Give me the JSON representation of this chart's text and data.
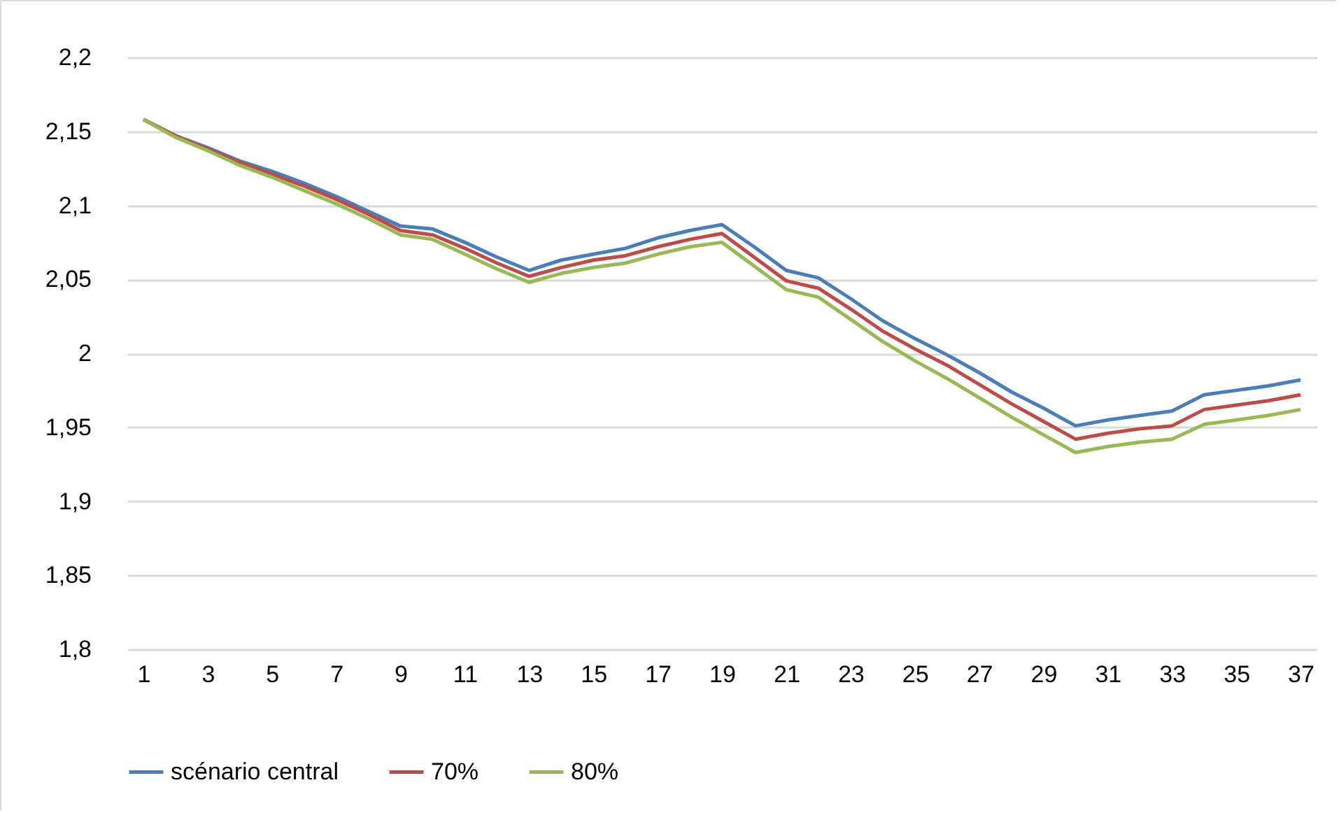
{
  "chart_data": {
    "type": "line",
    "x": [
      1,
      2,
      3,
      4,
      5,
      6,
      7,
      8,
      9,
      10,
      11,
      12,
      13,
      14,
      15,
      16,
      17,
      18,
      19,
      20,
      21,
      22,
      23,
      24,
      25,
      26,
      27,
      28,
      29,
      30,
      31,
      32,
      33,
      34,
      35,
      36,
      37
    ],
    "series": [
      {
        "name": "scénario central",
        "color": "#4a7ebb",
        "values": [
          2.158,
          2.147,
          2.139,
          2.13,
          2.123,
          2.115,
          2.106,
          2.096,
          2.086,
          2.084,
          2.075,
          2.065,
          2.056,
          2.063,
          2.067,
          2.071,
          2.078,
          2.083,
          2.087,
          2.072,
          2.056,
          2.051,
          2.037,
          2.022,
          2.01,
          1.999,
          1.987,
          1.974,
          1.963,
          1.951,
          1.955,
          1.958,
          1.961,
          1.972,
          1.975,
          1.978,
          1.982
        ]
      },
      {
        "name": "70%",
        "color": "#be4b48",
        "values": [
          2.158,
          2.147,
          2.138,
          2.129,
          2.121,
          2.113,
          2.104,
          2.094,
          2.083,
          2.08,
          2.071,
          2.061,
          2.052,
          2.058,
          2.063,
          2.066,
          2.072,
          2.077,
          2.081,
          2.065,
          2.049,
          2.044,
          2.03,
          2.015,
          2.003,
          1.992,
          1.979,
          1.966,
          1.954,
          1.942,
          1.946,
          1.949,
          1.951,
          1.962,
          1.965,
          1.968,
          1.972
        ]
      },
      {
        "name": "80%",
        "color": "#98b954",
        "values": [
          2.158,
          2.146,
          2.137,
          2.127,
          2.119,
          2.11,
          2.101,
          2.091,
          2.08,
          2.077,
          2.067,
          2.057,
          2.048,
          2.054,
          2.058,
          2.061,
          2.067,
          2.072,
          2.075,
          2.059,
          2.043,
          2.038,
          2.023,
          2.008,
          1.995,
          1.983,
          1.97,
          1.957,
          1.945,
          1.933,
          1.937,
          1.94,
          1.942,
          1.952,
          1.955,
          1.958,
          1.962
        ]
      }
    ],
    "xlim": [
      0.5,
      37.5
    ],
    "xticks": [
      1,
      3,
      5,
      7,
      9,
      11,
      13,
      15,
      17,
      19,
      21,
      23,
      25,
      27,
      29,
      31,
      33,
      35,
      37
    ],
    "ylim": [
      1.8,
      2.2
    ],
    "yticks": [
      {
        "value": 1.8,
        "label": "1,8"
      },
      {
        "value": 1.85,
        "label": "1,85"
      },
      {
        "value": 1.9,
        "label": "1,9"
      },
      {
        "value": 1.95,
        "label": "1,95"
      },
      {
        "value": 2,
        "label": "2"
      },
      {
        "value": 2.05,
        "label": "2,05"
      },
      {
        "value": 2.1,
        "label": "2,1"
      },
      {
        "value": 2.15,
        "label": "2,15"
      },
      {
        "value": 2.2,
        "label": "2,2"
      }
    ],
    "grid": "y",
    "legend": "bottom",
    "marker": "none",
    "line_style": "solid"
  }
}
